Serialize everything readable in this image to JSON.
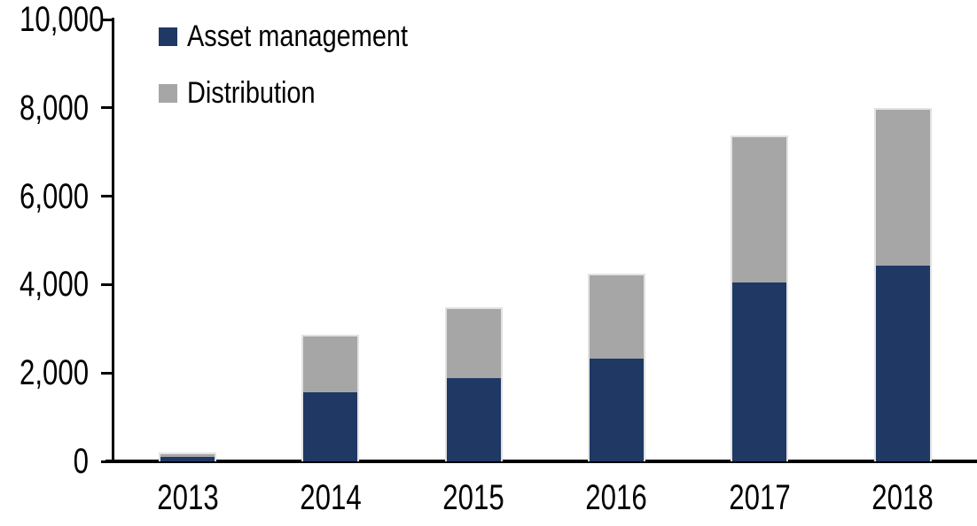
{
  "chart_data": {
    "type": "bar",
    "stacked": true,
    "title": "",
    "xlabel": "",
    "ylabel": "",
    "categories": [
      "2013",
      "2014",
      "2015",
      "2016",
      "2017",
      "2018"
    ],
    "series": [
      {
        "name": "Asset management",
        "color": "#1f3864",
        "values": [
          100,
          1560,
          1890,
          2320,
          4050,
          4420
        ]
      },
      {
        "name": "Distribution",
        "color": "#a6a6a6",
        "values": [
          110,
          1300,
          1590,
          1920,
          3320,
          3570
        ]
      }
    ],
    "totals": [
      210,
      2860,
      3480,
      4240,
      7370,
      7990
    ],
    "ylim": [
      0,
      10000
    ],
    "yticks": [
      0,
      2000,
      4000,
      6000,
      8000,
      10000
    ],
    "ytick_labels": [
      "0",
      "2,000",
      "4,000",
      "6,000",
      "8,000",
      "10,000"
    ],
    "grid": false,
    "legend_position": "top-left-inside",
    "axis_color": "#000000",
    "text_color": "#000000",
    "bar_edge_color": "#e2e2e2"
  }
}
